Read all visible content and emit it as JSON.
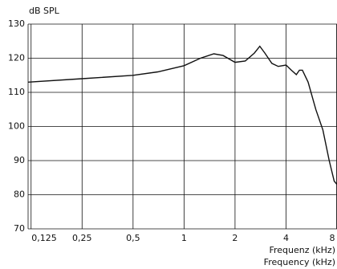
{
  "chart_data": {
    "type": "line",
    "ylabel": "dB  SPL",
    "xlabel": "Frequenz  (kHz)",
    "xlabel2": "Frequency  (kHz)",
    "log_x": true,
    "grid": true,
    "color": "#111111",
    "xlim": [
      0.12,
      8
    ],
    "ylim": [
      70,
      130
    ],
    "xticks": [
      {
        "value": 0.125,
        "label": "0,125"
      },
      {
        "value": 0.25,
        "label": "0,25"
      },
      {
        "value": 0.5,
        "label": "0,5"
      },
      1,
      2,
      4,
      8
    ],
    "yticks": [
      70,
      80,
      90,
      100,
      110,
      120,
      130
    ],
    "x": [
      0.12,
      0.25,
      0.5,
      0.7,
      1,
      1.25,
      1.5,
      1.7,
      2,
      2.3,
      2.6,
      2.8,
      3.0,
      3.3,
      3.6,
      4,
      4.3,
      4.6,
      4.8,
      5.0,
      5.4,
      6,
      6.6,
      7.2,
      7.7,
      8
    ],
    "values": [
      113,
      114,
      115,
      116,
      117.8,
      120,
      121.3,
      120.8,
      118.8,
      119.2,
      121.5,
      123.5,
      121.5,
      118.5,
      117.6,
      118,
      116.5,
      115.2,
      116.5,
      116.5,
      113,
      105,
      99,
      90,
      84,
      83
    ]
  }
}
